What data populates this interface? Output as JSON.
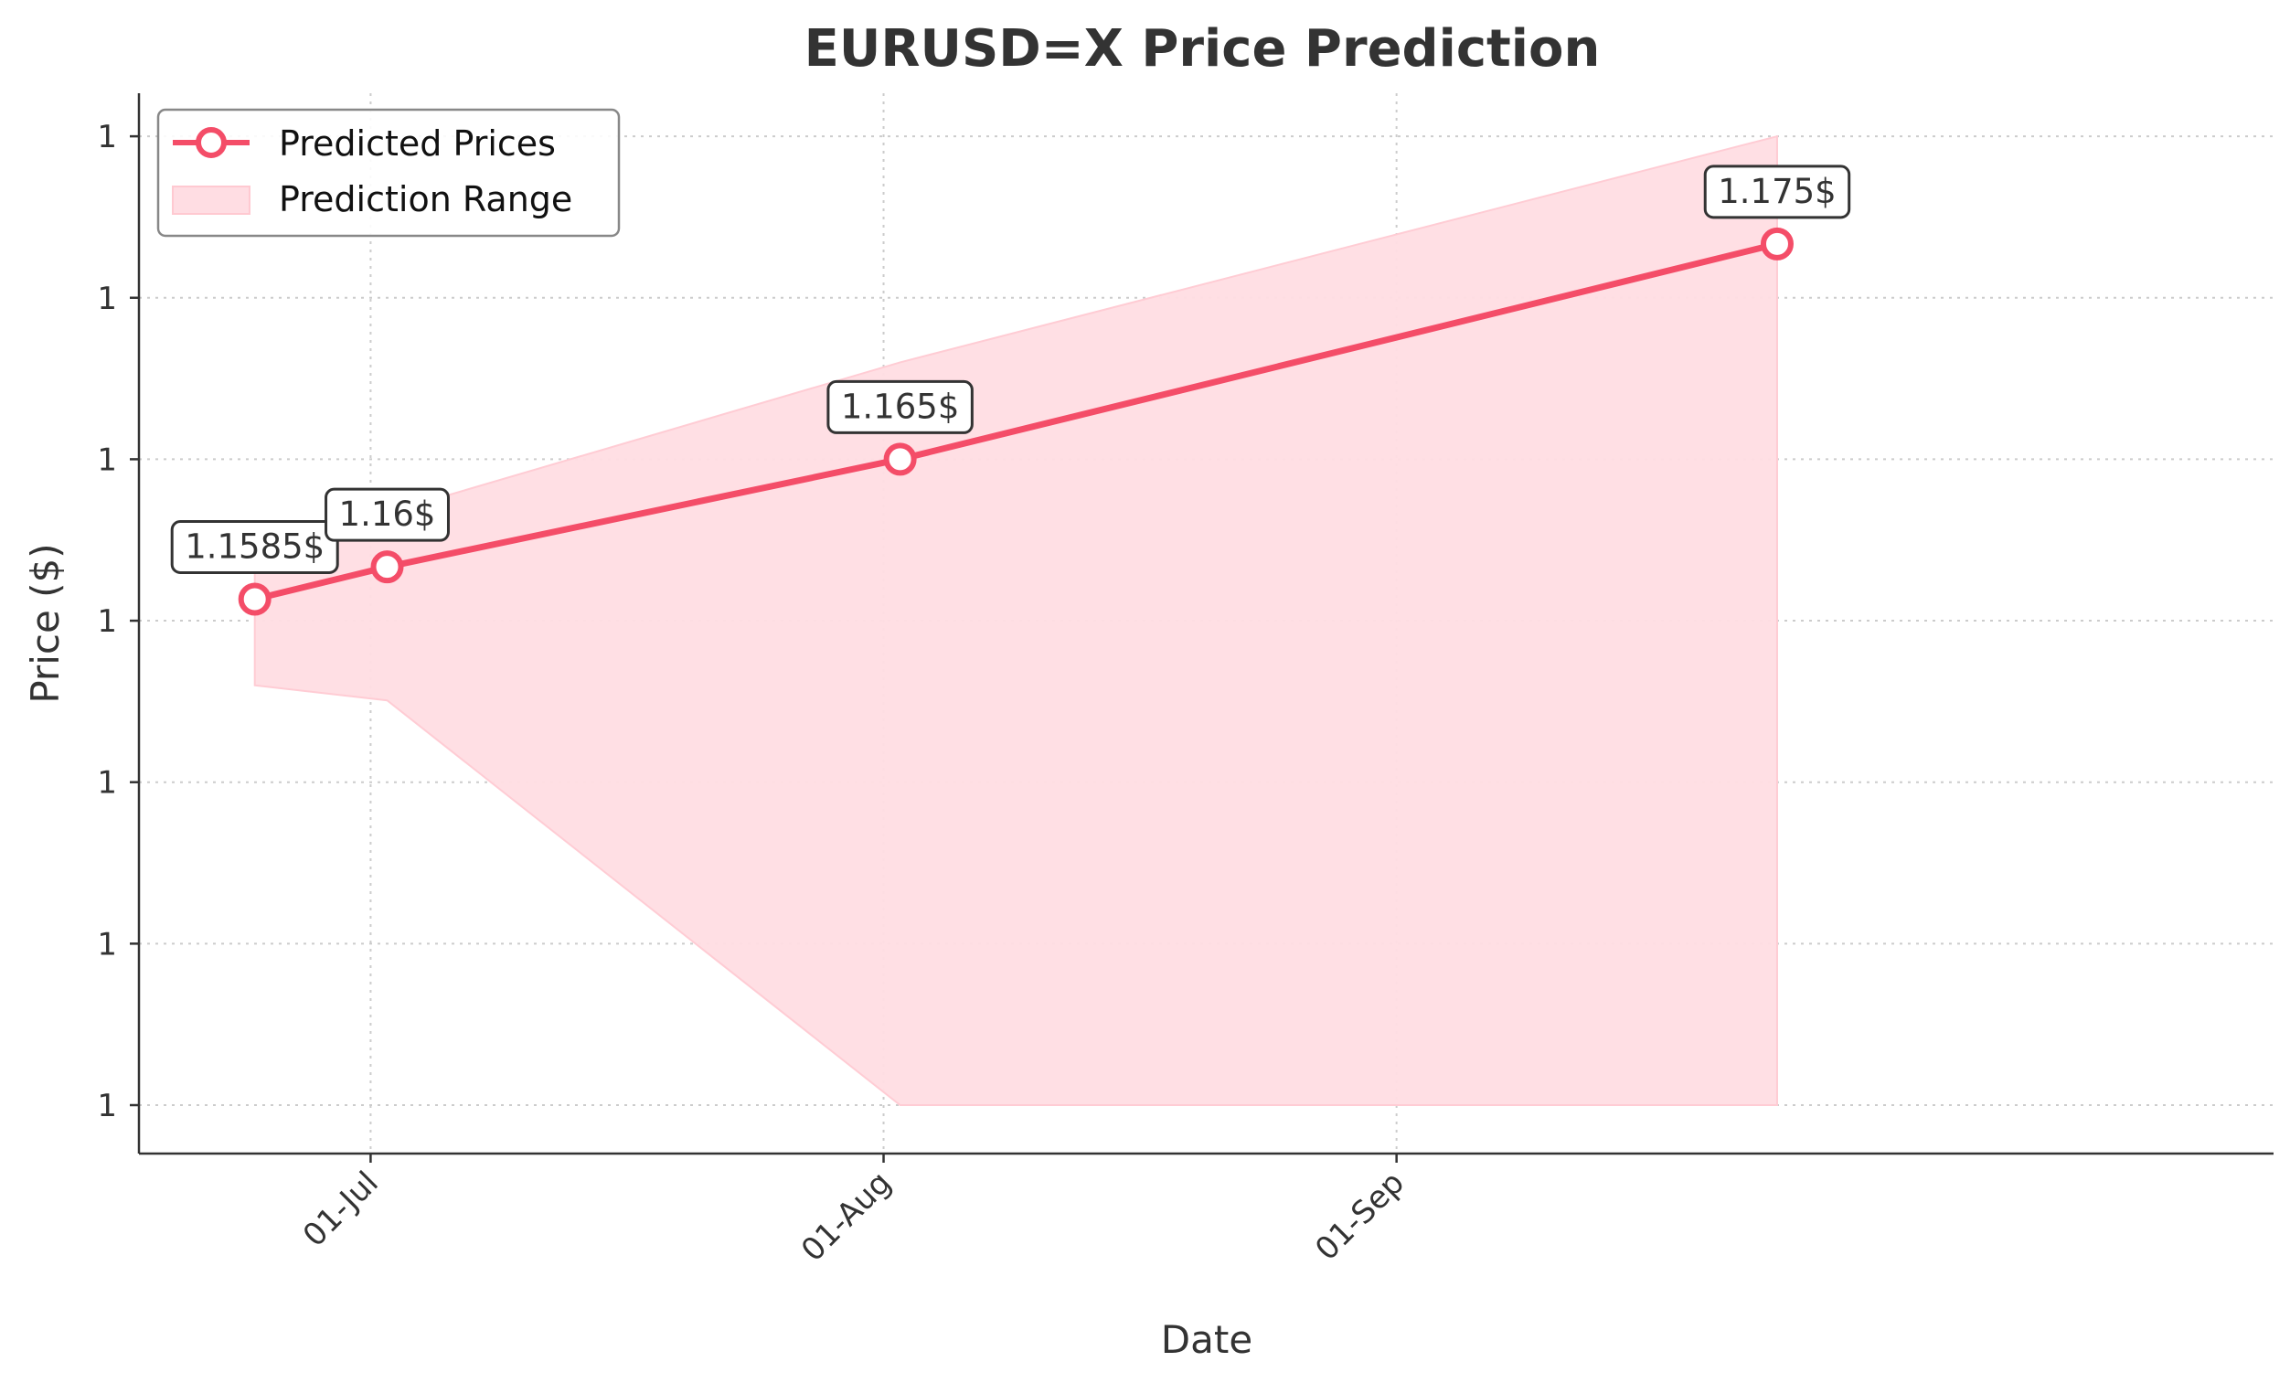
{
  "chart_data": {
    "type": "line",
    "title": "EURUSD=X Price Prediction",
    "xlabel": "Date",
    "ylabel": "Price ($)",
    "x_tick_labels": [
      "01-Jul",
      "01-Aug",
      "01-Sep"
    ],
    "x_tick_dates": [
      "2025-07-01",
      "2025-08-01",
      "2025-09-01"
    ],
    "y_tick_labels": [
      "1",
      "1",
      "1",
      "1",
      "1",
      "1",
      "1"
    ],
    "y_tick_values": [
      1.135,
      1.1425,
      1.15,
      1.1575,
      1.165,
      1.1725,
      1.18
    ],
    "xlim": [
      "2025-06-17",
      "2025-10-24"
    ],
    "ylim": [
      1.13275,
      1.182
    ],
    "grid": true,
    "legend": {
      "position": "top-left",
      "entries": [
        "Predicted Prices",
        "Prediction Range"
      ]
    },
    "series": [
      {
        "name": "Predicted Prices",
        "color": "#F44D68",
        "points": [
          {
            "x": "2025-06-24",
            "y": 1.1585,
            "label": "1.1585$"
          },
          {
            "x": "2025-07-02",
            "y": 1.16,
            "label": "1.16$"
          },
          {
            "x": "2025-08-02",
            "y": 1.165,
            "label": "1.165$"
          },
          {
            "x": "2025-09-24",
            "y": 1.175,
            "label": "1.175$"
          }
        ]
      },
      {
        "name": "Prediction Range",
        "color": "#FFDDE3",
        "band": [
          {
            "x": "2025-06-24",
            "low": 1.1545,
            "high": 1.1605
          },
          {
            "x": "2025-07-02",
            "low": 1.1538,
            "high": 1.1625
          },
          {
            "x": "2025-08-02",
            "low": 1.135,
            "high": 1.1695
          },
          {
            "x": "2025-09-24",
            "low": 1.135,
            "high": 1.18
          }
        ]
      }
    ]
  }
}
